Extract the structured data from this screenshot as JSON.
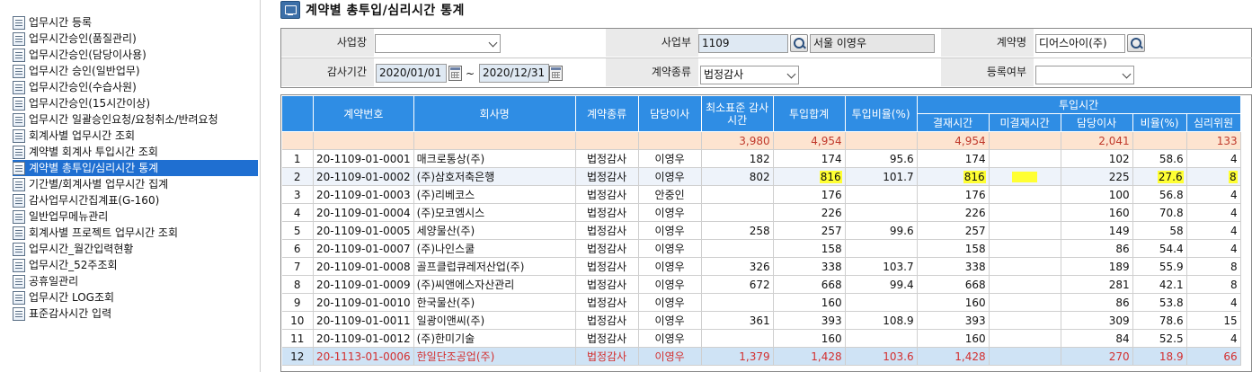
{
  "sidebar": {
    "items": [
      {
        "label": "업무시간 등록"
      },
      {
        "label": "업무시간승인(품질관리)"
      },
      {
        "label": "업무시간승인(담당이사용)"
      },
      {
        "label": "업무시간 승인(일반업무)"
      },
      {
        "label": "업무시간승인(수습사원)"
      },
      {
        "label": "업무시간승인(15시간이상)"
      },
      {
        "label": "업무시간 일괄승인요청/요청취소/반려요청"
      },
      {
        "label": "회계사별 업무시간 조회"
      },
      {
        "label": "계약별 회계사 투입시간 조회"
      },
      {
        "label": "계약별 총투입/심리시간 통계"
      },
      {
        "label": "기간별/회계사별 업무시간 집계"
      },
      {
        "label": "감사업무시간집계표(G-160)"
      },
      {
        "label": "일반업무메뉴관리"
      },
      {
        "label": "회계사별 프로젝트 업무시간 조회"
      },
      {
        "label": "업무시간_월간입력현황"
      },
      {
        "label": "업무시간_52주조회"
      },
      {
        "label": "공휴일관리"
      },
      {
        "label": "업무시간 LOG조회"
      },
      {
        "label": "표준감사시간 입력"
      }
    ],
    "selected_index": 9
  },
  "page": {
    "title": "계약별 총투입/심리시간 통계"
  },
  "filters": {
    "site_label": "사업장",
    "site_value": "",
    "dept_label": "사업부",
    "dept_code": "1109",
    "dept_name": "서울 이영우",
    "contract_label": "계약명",
    "contract_value": "디어스아이(주)",
    "period_label": "감사기간",
    "date_from": "2020/01/01",
    "date_sep": "~",
    "date_to": "2020/12/31",
    "type_label": "계약종류",
    "type_value": "법정감사",
    "reg_label": "등록여부",
    "reg_value": ""
  },
  "grid": {
    "headers": {
      "contract_no": "계약번호",
      "company": "회사명",
      "contract_type": "계약종류",
      "director": "담당이사",
      "min_std": "최소표준 감사시간",
      "total": "투입합계",
      "ratio": "투입비율(%)",
      "group": "투입시간",
      "approved": "결재시간",
      "unapproved": "미결재시간",
      "dir_time": "담당이사",
      "pct": "비율(%)",
      "reviewer": "심리위원"
    },
    "totals": {
      "min_std": "3,980",
      "total": "4,954",
      "approved": "4,954",
      "dir_time": "2,041",
      "reviewer": "133"
    },
    "rows": [
      {
        "no": "1",
        "contract_no": "20-1109-01-0001",
        "company": "매크로통상(주)",
        "type": "법정감사",
        "director": "이영우",
        "min_std": "182",
        "total": "174",
        "ratio": "95.6",
        "approved": "174",
        "unapproved": "",
        "dir_time": "102",
        "pct": "58.6",
        "reviewer": "4"
      },
      {
        "no": "2",
        "contract_no": "20-1109-01-0002",
        "company": "(주)삼호저축은행",
        "type": "법정감사",
        "director": "이영우",
        "min_std": "802",
        "total": "816",
        "ratio": "101.7",
        "approved": "816",
        "unapproved": "",
        "dir_time": "225",
        "pct": "27.6",
        "reviewer": "8"
      },
      {
        "no": "3",
        "contract_no": "20-1109-01-0003",
        "company": "(주)리베코스",
        "type": "법정감사",
        "director": "안중인",
        "min_std": "",
        "total": "176",
        "ratio": "",
        "approved": "176",
        "unapproved": "",
        "dir_time": "100",
        "pct": "56.8",
        "reviewer": "4"
      },
      {
        "no": "4",
        "contract_no": "20-1109-01-0004",
        "company": "(주)모코엠시스",
        "type": "법정감사",
        "director": "이영우",
        "min_std": "",
        "total": "226",
        "ratio": "",
        "approved": "226",
        "unapproved": "",
        "dir_time": "160",
        "pct": "70.8",
        "reviewer": "4"
      },
      {
        "no": "5",
        "contract_no": "20-1109-01-0005",
        "company": "세양물산(주)",
        "type": "법정감사",
        "director": "이영우",
        "min_std": "258",
        "total": "257",
        "ratio": "99.6",
        "approved": "257",
        "unapproved": "",
        "dir_time": "149",
        "pct": "58",
        "reviewer": "4"
      },
      {
        "no": "6",
        "contract_no": "20-1109-01-0007",
        "company": "(주)나인스쿨",
        "type": "법정감사",
        "director": "이영우",
        "min_std": "",
        "total": "158",
        "ratio": "",
        "approved": "158",
        "unapproved": "",
        "dir_time": "86",
        "pct": "54.4",
        "reviewer": "4"
      },
      {
        "no": "7",
        "contract_no": "20-1109-01-0008",
        "company": "골프클럽큐레저산업(주)",
        "type": "법정감사",
        "director": "이영우",
        "min_std": "326",
        "total": "338",
        "ratio": "103.7",
        "approved": "338",
        "unapproved": "",
        "dir_time": "189",
        "pct": "55.9",
        "reviewer": "8"
      },
      {
        "no": "8",
        "contract_no": "20-1109-01-0009",
        "company": "(주)씨앤에스자산관리",
        "type": "법정감사",
        "director": "이영우",
        "min_std": "672",
        "total": "668",
        "ratio": "99.4",
        "approved": "668",
        "unapproved": "",
        "dir_time": "281",
        "pct": "42.1",
        "reviewer": "8"
      },
      {
        "no": "9",
        "contract_no": "20-1109-01-0010",
        "company": "한국물산(주)",
        "type": "법정감사",
        "director": "이영우",
        "min_std": "",
        "total": "160",
        "ratio": "",
        "approved": "160",
        "unapproved": "",
        "dir_time": "86",
        "pct": "53.8",
        "reviewer": "4"
      },
      {
        "no": "10",
        "contract_no": "20-1109-01-0011",
        "company": "일광이앤씨(주)",
        "type": "법정감사",
        "director": "이영우",
        "min_std": "361",
        "total": "393",
        "ratio": "108.9",
        "approved": "393",
        "unapproved": "",
        "dir_time": "309",
        "pct": "78.6",
        "reviewer": "15"
      },
      {
        "no": "11",
        "contract_no": "20-1109-01-0012",
        "company": "(주)한미기술",
        "type": "법정감사",
        "director": "이영우",
        "min_std": "",
        "total": "160",
        "ratio": "",
        "approved": "160",
        "unapproved": "",
        "dir_time": "84",
        "pct": "52.5",
        "reviewer": "4"
      },
      {
        "no": "12",
        "contract_no": "20-1113-01-0006",
        "company": "한일단조공업(주)",
        "type": "법정감사",
        "director": "이영우",
        "min_std": "1,379",
        "total": "1,428",
        "ratio": "103.6",
        "approved": "1,428",
        "unapproved": "",
        "dir_time": "270",
        "pct": "18.9",
        "reviewer": "66"
      }
    ],
    "selected_row": 1,
    "highlighted_row": 11,
    "highlight_color": "#ffff33",
    "header_color": "#2f8de4",
    "total_row_color": "#fde4d0"
  }
}
